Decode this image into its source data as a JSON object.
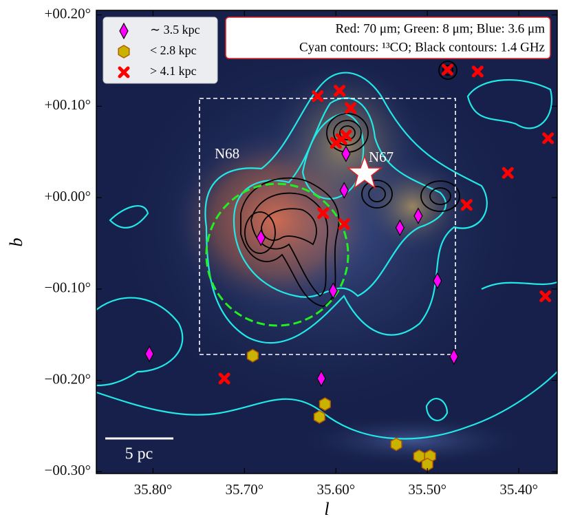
{
  "chart_data": {
    "type": "scatter",
    "xlabel": "l",
    "ylabel": "b",
    "xlim": [
      35.862,
      35.358
    ],
    "ylim": [
      -0.302,
      0.205
    ],
    "xticks": [
      {
        "value": 35.8,
        "label": "35.80°"
      },
      {
        "value": 35.7,
        "label": "35.70°"
      },
      {
        "value": 35.6,
        "label": "35.60°"
      },
      {
        "value": 35.5,
        "label": "35.50°"
      },
      {
        "value": 35.4,
        "label": "35.40°"
      }
    ],
    "yticks": [
      {
        "value": 0.2,
        "label": "+00.20°"
      },
      {
        "value": 0.1,
        "label": "+00.10°"
      },
      {
        "value": 0.0,
        "label": "+00.00°"
      },
      {
        "value": -0.1,
        "label": "−00.10°"
      },
      {
        "value": -0.2,
        "label": "−00.20°"
      },
      {
        "value": -0.3,
        "label": "−00.30°"
      }
    ],
    "legend": "upper left",
    "series": [
      {
        "name": "∼ 3.5 kpc",
        "color": "#ff00ff",
        "marker": "diamond",
        "x": [
          35.589,
          35.591,
          35.682,
          35.53,
          35.51,
          35.603,
          35.489,
          35.804,
          35.471,
          35.616
        ],
        "values": [
          0.048,
          0.008,
          -0.044,
          -0.033,
          -0.02,
          -0.102,
          -0.091,
          -0.171,
          -0.174,
          -0.198
        ]
      },
      {
        "name": "< 2.8 kpc",
        "color": "#c8b400",
        "marker": "hexagon",
        "x": [
          35.691,
          35.612,
          35.618,
          35.534,
          35.509,
          35.497,
          35.5
        ],
        "values": [
          -0.173,
          -0.226,
          -0.24,
          -0.27,
          -0.283,
          -0.283,
          -0.292
        ]
      },
      {
        "name": "> 4.1 kpc",
        "color": "#ff0000",
        "marker": "x",
        "x": [
          35.478,
          35.445,
          35.62,
          35.596,
          35.584,
          35.6,
          35.589,
          35.594,
          35.614,
          35.591,
          35.457,
          35.412,
          35.368,
          35.371,
          35.722
        ],
        "values": [
          0.14,
          0.138,
          0.111,
          0.117,
          0.098,
          0.06,
          0.068,
          0.064,
          -0.017,
          -0.029,
          -0.008,
          0.027,
          0.065,
          -0.108,
          -0.198
        ]
      }
    ],
    "info_lines": [
      "Red: 70 μm; Green: 8 μm; Blue: 3.6 μm",
      "Cyan contours: ¹³CO; Black contours: 1.4 GHz"
    ],
    "annotations": [
      "N68",
      "N67",
      "5 pc"
    ]
  }
}
